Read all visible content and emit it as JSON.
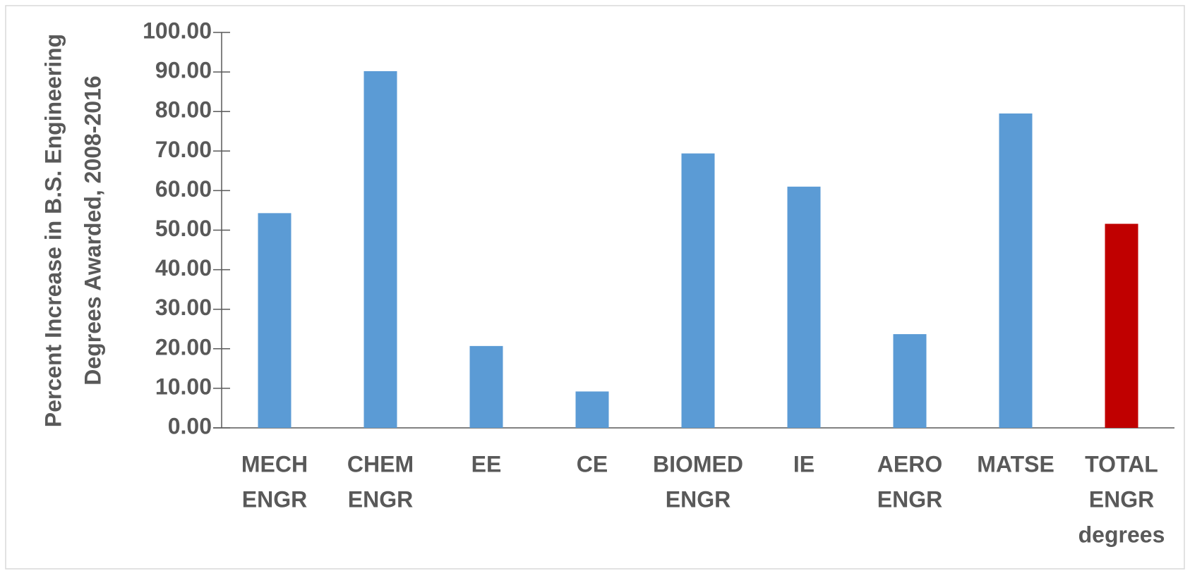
{
  "chart_data": {
    "type": "bar",
    "y_label": [
      "Percent Increase in B.S. Engineering",
      "Degrees Awarded, 2008-2016"
    ],
    "categories": [
      [
        "MECH",
        "ENGR"
      ],
      [
        "CHEM",
        "ENGR"
      ],
      [
        "EE"
      ],
      [
        "CE"
      ],
      [
        "BIOMED",
        "ENGR"
      ],
      [
        "IE"
      ],
      [
        "AERO",
        "ENGR"
      ],
      [
        "MATSE"
      ],
      [
        "TOTAL",
        "ENGR",
        "degrees"
      ]
    ],
    "values": [
      54.3,
      90.2,
      20.7,
      9.2,
      69.4,
      61.0,
      23.7,
      79.5,
      51.6
    ],
    "colors": [
      "#5b9bd5",
      "#5b9bd5",
      "#5b9bd5",
      "#5b9bd5",
      "#5b9bd5",
      "#5b9bd5",
      "#5b9bd5",
      "#5b9bd5",
      "#c00000"
    ],
    "ylim": [
      0,
      100
    ],
    "yticks": [
      {
        "value": 0,
        "label": "0.00"
      },
      {
        "value": 10,
        "label": "10.00"
      },
      {
        "value": 20,
        "label": "20.00"
      },
      {
        "value": 30,
        "label": "30.00"
      },
      {
        "value": 40,
        "label": "40.00"
      },
      {
        "value": 50,
        "label": "50.00"
      },
      {
        "value": 60,
        "label": "60.00"
      },
      {
        "value": 70,
        "label": "70.00"
      },
      {
        "value": 80,
        "label": "80.00"
      },
      {
        "value": 90,
        "label": "90.00"
      },
      {
        "value": 100,
        "label": "100.00"
      }
    ],
    "grid": false
  }
}
